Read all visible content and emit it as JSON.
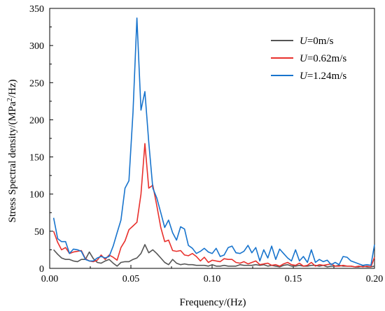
{
  "chart_data": {
    "type": "line",
    "xlabel": "Frequency/(Hz)",
    "ylabel": "Stress Spectral density/(MPa²/Hz)",
    "xlim": [
      0.0,
      0.2
    ],
    "ylim": [
      0,
      350
    ],
    "x_ticks": [
      "0.00",
      "0.05",
      "0.10",
      "0.15",
      "0.20"
    ],
    "y_ticks": [
      "0",
      "50",
      "100",
      "150",
      "200",
      "250",
      "300",
      "350"
    ],
    "grid": false,
    "legend_position": "top-right",
    "x": [
      0.0024,
      0.0049,
      0.0073,
      0.0098,
      0.0122,
      0.0146,
      0.0171,
      0.0195,
      0.022,
      0.0244,
      0.0269,
      0.0293,
      0.0317,
      0.0342,
      0.0366,
      0.0391,
      0.0415,
      0.0439,
      0.0464,
      0.0488,
      0.0513,
      0.0537,
      0.0562,
      0.0586,
      0.061,
      0.0635,
      0.0659,
      0.0684,
      0.0708,
      0.0732,
      0.0757,
      0.0781,
      0.0806,
      0.083,
      0.0854,
      0.0879,
      0.0903,
      0.0928,
      0.0952,
      0.0977,
      0.1001,
      0.1025,
      0.105,
      0.1074,
      0.1099,
      0.1123,
      0.1147,
      0.1172,
      0.1196,
      0.1221,
      0.1245,
      0.1269,
      0.1294,
      0.1318,
      0.1343,
      0.1367,
      0.1392,
      0.1416,
      0.144,
      0.1465,
      0.1489,
      0.1514,
      0.1538,
      0.1562,
      0.1587,
      0.1611,
      0.1636,
      0.166,
      0.1685,
      0.1709,
      0.1733,
      0.1758,
      0.1782,
      0.1807,
      0.1831,
      0.1855,
      0.188,
      0.1904,
      0.1929,
      0.1953,
      0.1978,
      0.2
    ],
    "series": [
      {
        "name": "U=0m/s",
        "color": "#555555",
        "values": [
          25,
          19,
          14,
          12,
          12,
          10,
          9,
          12,
          12,
          22,
          13,
          8,
          7,
          10,
          12,
          7,
          3,
          8,
          9,
          9,
          12,
          14,
          20,
          32,
          21,
          25,
          20,
          14,
          8,
          5,
          12,
          7,
          5,
          6,
          5,
          5,
          4,
          4,
          4,
          3,
          5,
          3,
          3,
          4,
          3,
          3,
          3,
          5,
          4,
          4,
          4,
          5,
          4,
          5,
          3,
          4,
          3,
          2,
          4,
          5,
          3,
          3,
          4,
          3,
          3,
          4,
          4,
          3,
          4,
          2,
          3,
          3,
          4,
          3,
          3,
          3,
          2,
          2,
          3,
          2,
          2,
          3
        ]
      },
      {
        "name": "U=0.62m/s",
        "color": "#e8302c",
        "values": [
          50,
          35,
          25,
          28,
          20,
          22,
          23,
          24,
          13,
          10,
          9,
          11,
          18,
          12,
          18,
          15,
          11,
          28,
          37,
          52,
          57,
          62,
          100,
          168,
          108,
          112,
          85,
          55,
          36,
          38,
          24,
          23,
          24,
          18,
          17,
          20,
          16,
          10,
          15,
          8,
          11,
          10,
          9,
          13,
          12,
          12,
          8,
          7,
          9,
          6,
          8,
          10,
          5,
          6,
          7,
          4,
          5,
          3,
          6,
          8,
          5,
          4,
          7,
          3,
          4,
          8,
          3,
          5,
          4,
          5,
          6,
          3,
          3,
          4,
          3,
          3,
          2,
          3,
          2,
          3,
          2,
          15
        ]
      },
      {
        "name": "U=1.24m/s",
        "color": "#1874cd",
        "values": [
          68,
          40,
          36,
          36,
          20,
          26,
          25,
          23,
          12,
          10,
          10,
          14,
          16,
          14,
          16,
          30,
          48,
          65,
          108,
          118,
          210,
          337,
          213,
          238,
          170,
          108,
          95,
          75,
          55,
          65,
          48,
          38,
          56,
          53,
          31,
          27,
          20,
          23,
          27,
          22,
          20,
          27,
          16,
          18,
          28,
          30,
          21,
          20,
          23,
          31,
          21,
          28,
          10,
          25,
          14,
          30,
          12,
          26,
          20,
          14,
          10,
          25,
          10,
          16,
          8,
          25,
          8,
          12,
          9,
          11,
          5,
          8,
          5,
          16,
          15,
          10,
          8,
          6,
          4,
          5,
          4,
          32
        ]
      }
    ]
  },
  "legend": {
    "items": [
      {
        "prefix": "U",
        "rest": "=0m/s"
      },
      {
        "prefix": "U",
        "rest": "=0.62m/s"
      },
      {
        "prefix": "U",
        "rest": "=1.24m/s"
      }
    ]
  }
}
